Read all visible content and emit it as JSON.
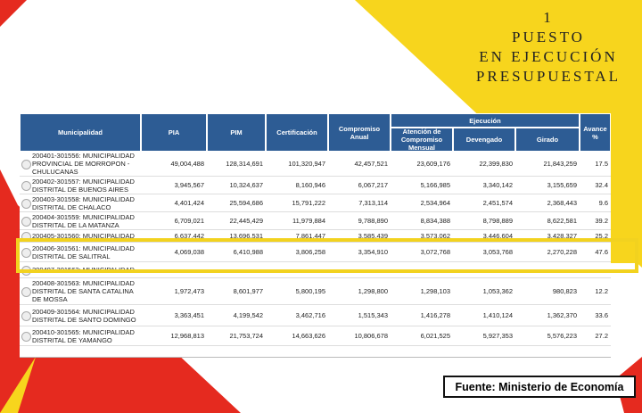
{
  "title": {
    "line1": "1",
    "line2": "PUESTO",
    "line3": "EN EJECUCIÓN",
    "line4": "PRESUPUESTAL"
  },
  "table": {
    "headers": {
      "municipalidad": "Municipalidad",
      "pia": "PIA",
      "pim": "PIM",
      "certificacion": "Certificación",
      "compromiso": "Compromiso Anual",
      "ejecucion": "Ejecución",
      "atencion": "Atención de Compromiso Mensual",
      "devengado": "Devengado",
      "girado": "Girado",
      "avance": "Avance %"
    },
    "rows": [
      {
        "name": "200401-301556: MUNICIPALIDAD PROVINCIAL DE MORROPON - CHULUCANAS",
        "values": [
          "49,004,488",
          "128,314,691",
          "101,320,947",
          "42,457,521",
          "23,609,176",
          "22,399,830",
          "21,843,259",
          "17.5"
        ]
      },
      {
        "name": "200402-301557: MUNICIPALIDAD DISTRITAL DE BUENOS AIRES",
        "values": [
          "3,945,567",
          "10,324,637",
          "8,160,946",
          "6,067,217",
          "5,166,985",
          "3,340,142",
          "3,155,659",
          "32.4"
        ]
      },
      {
        "name": "200403-301558: MUNICIPALIDAD DISTRITAL DE CHALACO",
        "values": [
          "4,401,424",
          "25,594,686",
          "15,791,222",
          "7,313,114",
          "2,534,964",
          "2,451,574",
          "2,368,443",
          "9.6"
        ]
      },
      {
        "name": "200404-301559: MUNICIPALIDAD DISTRITAL DE LA MATANZA",
        "values": [
          "6,709,021",
          "22,445,429",
          "11,979,884",
          "9,788,890",
          "8,834,388",
          "8,798,889",
          "8,622,581",
          "39.2"
        ]
      },
      {
        "name": "200405-301560: MUNICIPALIDAD",
        "values": [
          "6,637,442",
          "13,696,531",
          "7,861,447",
          "3,585,439",
          "3,573,062",
          "3,446,604",
          "3,428,327",
          "25.2"
        ]
      },
      {
        "name": "200406-301561: MUNICIPALIDAD DISTRITAL DE SALITRAL",
        "values": [
          "4,069,038",
          "6,410,988",
          "3,806,258",
          "3,354,910",
          "3,072,768",
          "3,053,768",
          "2,270,228",
          "47.6"
        ]
      },
      {
        "name": "200407-301562: MUNICIPALIDAD",
        "values": []
      },
      {
        "name": "200408-301563: MUNICIPALIDAD DISTRITAL DE SANTA CATALINA DE MOSSA",
        "values": [
          "1,972,473",
          "8,601,977",
          "5,800,195",
          "1,298,800",
          "1,298,103",
          "1,053,362",
          "980,823",
          "12.2"
        ]
      },
      {
        "name": "200409-301564: MUNICIPALIDAD DISTRITAL DE SANTO DOMINGO",
        "values": [
          "3,363,451",
          "4,199,542",
          "3,462,716",
          "1,515,343",
          "1,416,278",
          "1,410,124",
          "1,362,370",
          "33.6"
        ]
      },
      {
        "name": "200410-301565: MUNICIPALIDAD DISTRITAL DE YAMANGO",
        "values": [
          "12,968,813",
          "21,753,724",
          "14,663,626",
          "10,806,678",
          "6,021,525",
          "5,927,353",
          "5,576,223",
          "27.2"
        ]
      }
    ]
  },
  "footer": {
    "source": "Fuente: Ministerio de Economía"
  }
}
